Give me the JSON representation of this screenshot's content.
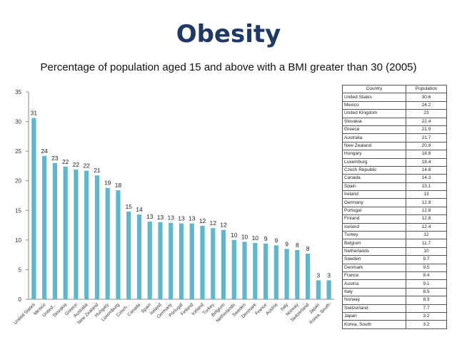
{
  "slide": {
    "title": "Obesity",
    "subtitle": "Percentage of population aged 15 and above with a BMI greater than 30 (2005)"
  },
  "colors": {
    "bar": "#5fb6cd",
    "title": "#1f3864",
    "axis": "#888888"
  },
  "chart_data": {
    "type": "bar",
    "title": "Obesity",
    "subtitle": "Percentage of population aged 15 and above with a BMI greater than 30 (2005)",
    "ylim": [
      0,
      35
    ],
    "yticks": [
      0,
      5,
      10,
      15,
      20,
      25,
      30,
      35
    ],
    "grid": false,
    "categories": [
      "United States",
      "Mexico",
      "United...",
      "Slovakia",
      "Greece",
      "Australia",
      "New Zealand",
      "Hungary",
      "Luxemburg",
      "Czech...",
      "Canada",
      "Spain",
      "Ireland",
      "Germany",
      "Portugal",
      "Finland",
      "Iceland",
      "Turkey",
      "Belgium",
      "Netherlands",
      "Sweden",
      "Denmark",
      "France",
      "Austria",
      "Italy",
      "Norway",
      "Switzerland",
      "Japan",
      "Korea, South"
    ],
    "values": [
      30.6,
      24.2,
      23,
      22.4,
      21.9,
      21.7,
      20.9,
      18.8,
      18.4,
      14.8,
      14.3,
      13.1,
      13,
      12.9,
      12.8,
      12.8,
      12.4,
      12,
      11.7,
      10,
      9.7,
      9.5,
      9.4,
      9.1,
      8.5,
      8.3,
      7.7,
      3.2,
      3.2
    ],
    "data_labels": [
      "31",
      "24",
      "23",
      "22",
      "22",
      "22",
      "21",
      "19",
      "18",
      "15",
      "14",
      "13",
      "13",
      "13",
      "13",
      "13",
      "12",
      "12",
      "12",
      "10",
      "10",
      "10",
      "9",
      "9",
      "9",
      "8",
      "8",
      "3",
      "3"
    ]
  },
  "table": {
    "headers": [
      "Country",
      "Population"
    ],
    "rows": [
      [
        "United States",
        "30.6"
      ],
      [
        "Mexico",
        "24.2"
      ],
      [
        "United Kingdom",
        "23"
      ],
      [
        "Slovakia",
        "22.4"
      ],
      [
        "Greece",
        "21.9"
      ],
      [
        "Australia",
        "21.7"
      ],
      [
        "New Zealand",
        "20.9"
      ],
      [
        "Hungary",
        "18.8"
      ],
      [
        "Luxemburg",
        "18.4"
      ],
      [
        "Czech Republic",
        "14.8"
      ],
      [
        "Canada",
        "14.3"
      ],
      [
        "Spain",
        "13.1"
      ],
      [
        "Ireland",
        "13"
      ],
      [
        "Germany",
        "12.9"
      ],
      [
        "Portugal",
        "12.8"
      ],
      [
        "Finland",
        "12.8"
      ],
      [
        "Iceland",
        "12.4"
      ],
      [
        "Turkey",
        "12"
      ],
      [
        "Belgium",
        "11.7"
      ],
      [
        "Netherlands",
        "10"
      ],
      [
        "Sweden",
        "9.7"
      ],
      [
        "Denmark",
        "9.5"
      ],
      [
        "France",
        "9.4"
      ],
      [
        "Austria",
        "9.1"
      ],
      [
        "Italy",
        "8.5"
      ],
      [
        "Norway",
        "8.3"
      ],
      [
        "Switzerland",
        "7.7"
      ],
      [
        "Japan",
        "3.2"
      ],
      [
        "Korea, South",
        "3.2"
      ]
    ]
  }
}
